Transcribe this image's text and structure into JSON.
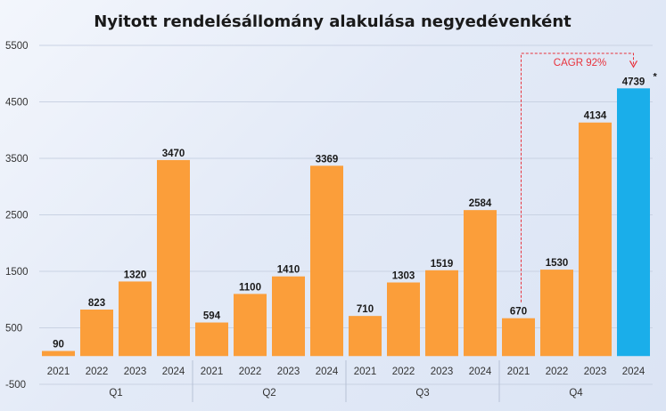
{
  "chart_data": {
    "type": "bar",
    "title": "Nyitott rendelésállomány alakulása negyedévenként",
    "xlabel": "",
    "ylabel": "",
    "ylim": [
      -500,
      5500
    ],
    "yticks": [
      "5500",
      "4500",
      "3500",
      "2500",
      "1500",
      "500",
      "-500"
    ],
    "ytick_values": [
      5500,
      4500,
      3500,
      2500,
      1500,
      500,
      -500
    ],
    "grid": true,
    "groups": [
      {
        "name": "Q1",
        "bars": [
          {
            "label": "2021",
            "value": 90,
            "value_label": "90"
          },
          {
            "label": "2022",
            "value": 823,
            "value_label": "823"
          },
          {
            "label": "2023",
            "value": 1320,
            "value_label": "1320"
          },
          {
            "label": "2024",
            "value": 3470,
            "value_label": "3470"
          }
        ]
      },
      {
        "name": "Q2",
        "bars": [
          {
            "label": "2021",
            "value": 594,
            "value_label": "594"
          },
          {
            "label": "2022",
            "value": 1100,
            "value_label": "1100"
          },
          {
            "label": "2023",
            "value": 1410,
            "value_label": "1410"
          },
          {
            "label": "2024",
            "value": 3369,
            "value_label": "3369"
          }
        ]
      },
      {
        "name": "Q3",
        "bars": [
          {
            "label": "2021",
            "value": 710,
            "value_label": "710"
          },
          {
            "label": "2022",
            "value": 1303,
            "value_label": "1303"
          },
          {
            "label": "2023",
            "value": 1519,
            "value_label": "1519"
          },
          {
            "label": "2024",
            "value": 2584,
            "value_label": "2584"
          }
        ]
      },
      {
        "name": "Q4",
        "bars": [
          {
            "label": "2021",
            "value": 670,
            "value_label": "670"
          },
          {
            "label": "2022",
            "value": 1530,
            "value_label": "1530"
          },
          {
            "label": "2023",
            "value": 4134,
            "value_label": "4134"
          },
          {
            "label": "2024",
            "value": 4739,
            "value_label": "4739",
            "highlight": true,
            "footnote": "*"
          }
        ]
      }
    ],
    "annotation": {
      "text": "CAGR 92%",
      "from": {
        "group": 3,
        "bar": 0
      },
      "to": {
        "group": 3,
        "bar": 3
      }
    },
    "colors": {
      "bar": "#fb9e3a",
      "highlight": "#1aaeea",
      "annotation": "#e8323c",
      "grid": "#c9d2e3",
      "text": "#1a1a1a",
      "axis_text": "#333333"
    }
  }
}
